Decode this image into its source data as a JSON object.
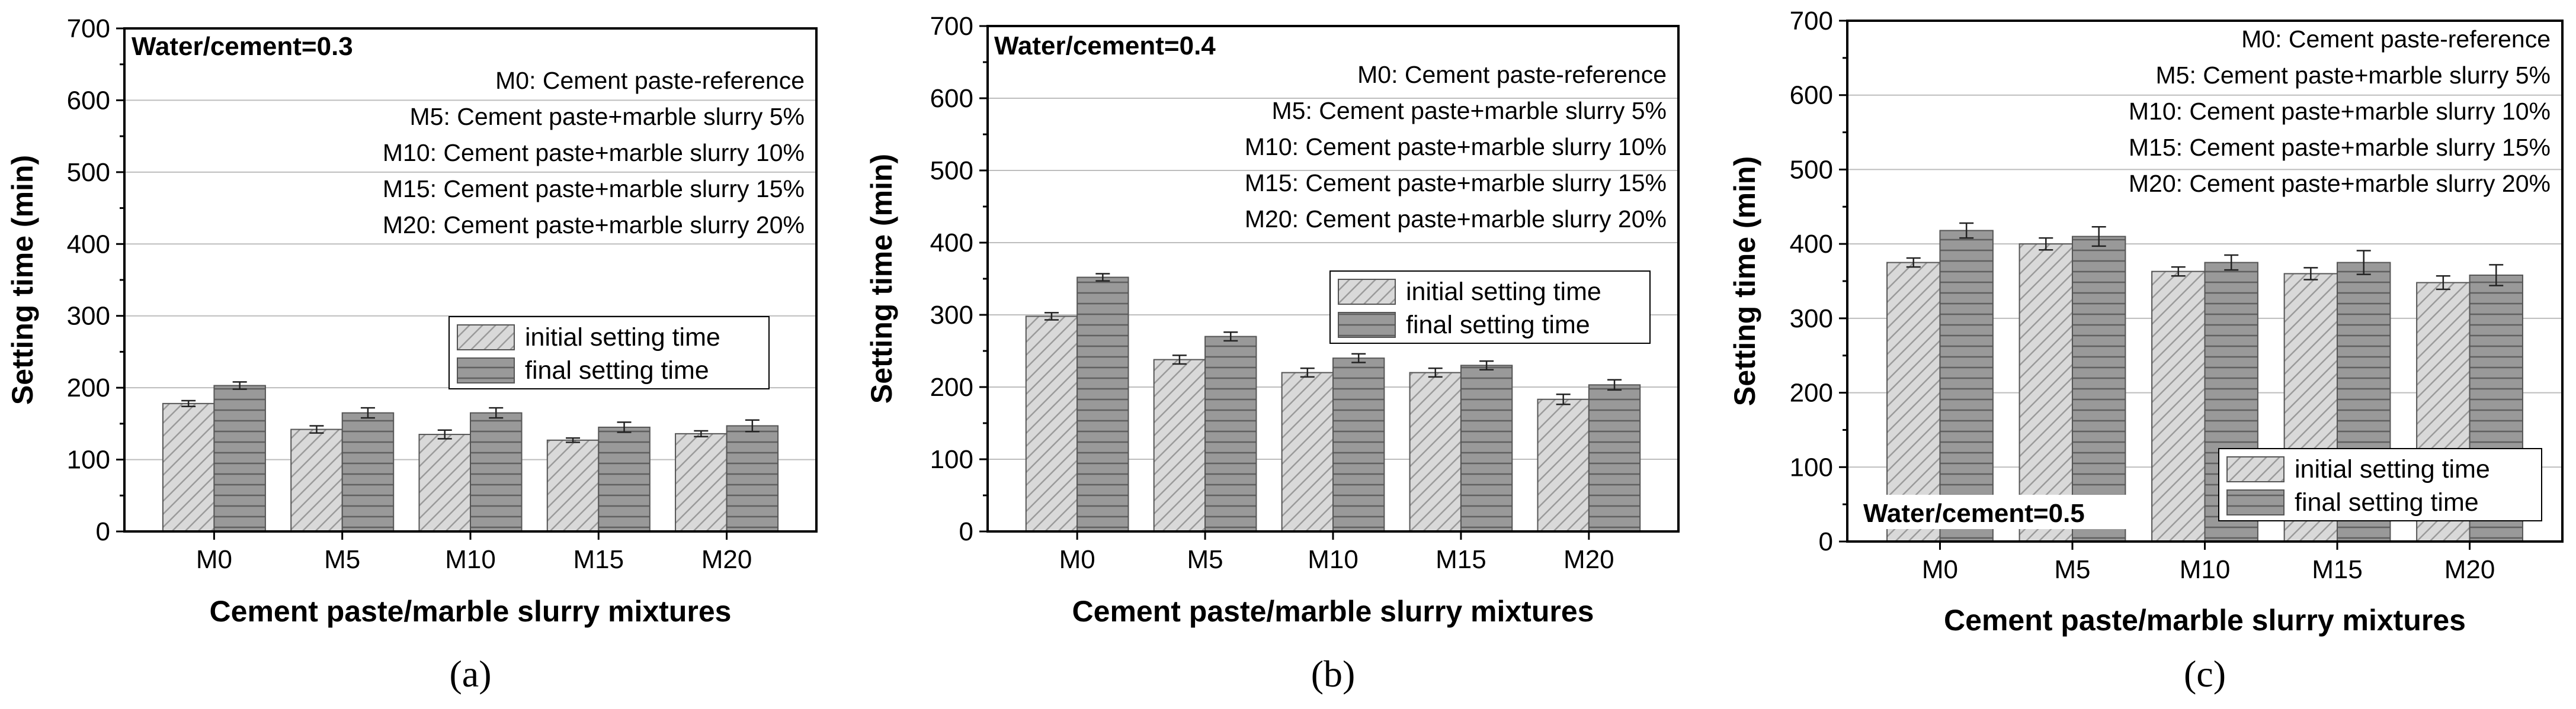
{
  "colors": {
    "initial_fill": "#d9d9d9",
    "initial_hatch": "#9a9a9a",
    "final_fill": "#999999",
    "final_hatch": "#606060",
    "grid": "#bdbdbd",
    "axis": "#000000"
  },
  "chart_data": [
    {
      "type": "bar",
      "panel_label": "(a)",
      "annotation": "Water/cement=0.3",
      "xlabel": "Cement paste/marble slurry mixtures",
      "ylabel": "Setting time (min)",
      "ylim": [
        0,
        700
      ],
      "yticks": [
        "0",
        "100",
        "200",
        "300",
        "400",
        "500",
        "600",
        "700"
      ],
      "grid": true,
      "categories": [
        "M0",
        "M5",
        "M10",
        "M15",
        "M20"
      ],
      "series": [
        {
          "name": "initial setting time",
          "values": [
            178,
            142,
            135,
            127,
            136
          ],
          "errors": [
            4,
            5,
            6,
            3,
            4
          ]
        },
        {
          "name": "final setting time",
          "values": [
            203,
            165,
            165,
            145,
            147
          ],
          "errors": [
            5,
            7,
            7,
            7,
            8
          ]
        }
      ],
      "notes": [
        "M0: Cement paste-reference",
        "M5: Cement paste+marble slurry  5%",
        "M10: Cement paste+marble slurry 10%",
        "M15: Cement paste+marble slurry 15%",
        "M20: Cement paste+marble slurry 20%"
      ]
    },
    {
      "type": "bar",
      "panel_label": "(b)",
      "annotation": "Water/cement=0.4",
      "xlabel": "Cement paste/marble slurry mixtures",
      "ylabel": "Setting time (min)",
      "ylim": [
        0,
        700
      ],
      "yticks": [
        "0",
        "100",
        "200",
        "300",
        "400",
        "500",
        "600",
        "700"
      ],
      "grid": true,
      "categories": [
        "M0",
        "M5",
        "M10",
        "M15",
        "M20"
      ],
      "series": [
        {
          "name": "initial setting time",
          "values": [
            298,
            238,
            220,
            220,
            183
          ],
          "errors": [
            5,
            6,
            6,
            6,
            7
          ]
        },
        {
          "name": "final setting time",
          "values": [
            352,
            270,
            240,
            230,
            203
          ],
          "errors": [
            5,
            6,
            6,
            6,
            7
          ]
        }
      ],
      "notes": [
        "M0: Cement paste-reference",
        "M5: Cement paste+marble slurry  5%",
        "M10: Cement paste+marble slurry 10%",
        "M15: Cement paste+marble slurry 15%",
        "M20: Cement paste+marble slurry 20%"
      ]
    },
    {
      "type": "bar",
      "panel_label": "(c)",
      "annotation": "Water/cement=0.5",
      "xlabel": "Cement paste/marble slurry mixtures",
      "ylabel": "Setting time (min)",
      "ylim": [
        0,
        700
      ],
      "yticks": [
        "0",
        "100",
        "200",
        "300",
        "400",
        "500",
        "600",
        "700"
      ],
      "grid": true,
      "categories": [
        "M0",
        "M5",
        "M10",
        "M15",
        "M20"
      ],
      "series": [
        {
          "name": "initial setting time",
          "values": [
            375,
            400,
            363,
            360,
            348
          ],
          "errors": [
            6,
            8,
            6,
            8,
            9
          ]
        },
        {
          "name": "final setting time",
          "values": [
            418,
            410,
            375,
            375,
            358
          ],
          "errors": [
            10,
            13,
            10,
            16,
            14
          ]
        }
      ],
      "notes": [
        "M0: Cement paste-reference",
        "M5: Cement paste+marble slurry  5%",
        "M10: Cement paste+marble slurry 10%",
        "M15: Cement paste+marble slurry 15%",
        "M20: Cement paste+marble slurry 20%"
      ]
    }
  ]
}
